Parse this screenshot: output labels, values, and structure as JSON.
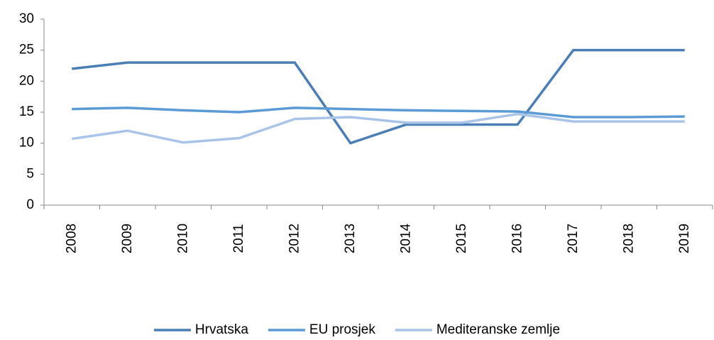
{
  "chart_data": {
    "type": "line",
    "categories": [
      "2008",
      "2009",
      "2010",
      "2011",
      "2012",
      "2013",
      "2014",
      "2015",
      "2016",
      "2017",
      "2018",
      "2019"
    ],
    "series": [
      {
        "name": "Hrvatska",
        "color": "#4a7eb5",
        "values": [
          22,
          23,
          23,
          23,
          23,
          10,
          13,
          13,
          13,
          25,
          25,
          25
        ]
      },
      {
        "name": "EU prosjek",
        "color": "#5b9bd5",
        "values": [
          15.5,
          15.7,
          15.3,
          15,
          15.7,
          15.5,
          15.3,
          15.2,
          15.1,
          14.2,
          14.2,
          14.3
        ]
      },
      {
        "name": "Mediteranske zemlje",
        "color": "#a9c4e8",
        "values": [
          10.7,
          12,
          10.1,
          10.8,
          13.9,
          14.2,
          13.3,
          13.3,
          14.7,
          13.5,
          13.5,
          13.5
        ]
      }
    ],
    "ylim": [
      0,
      30
    ],
    "yticks": [
      0,
      5,
      10,
      15,
      20,
      25,
      30
    ],
    "legend": "bottom"
  }
}
